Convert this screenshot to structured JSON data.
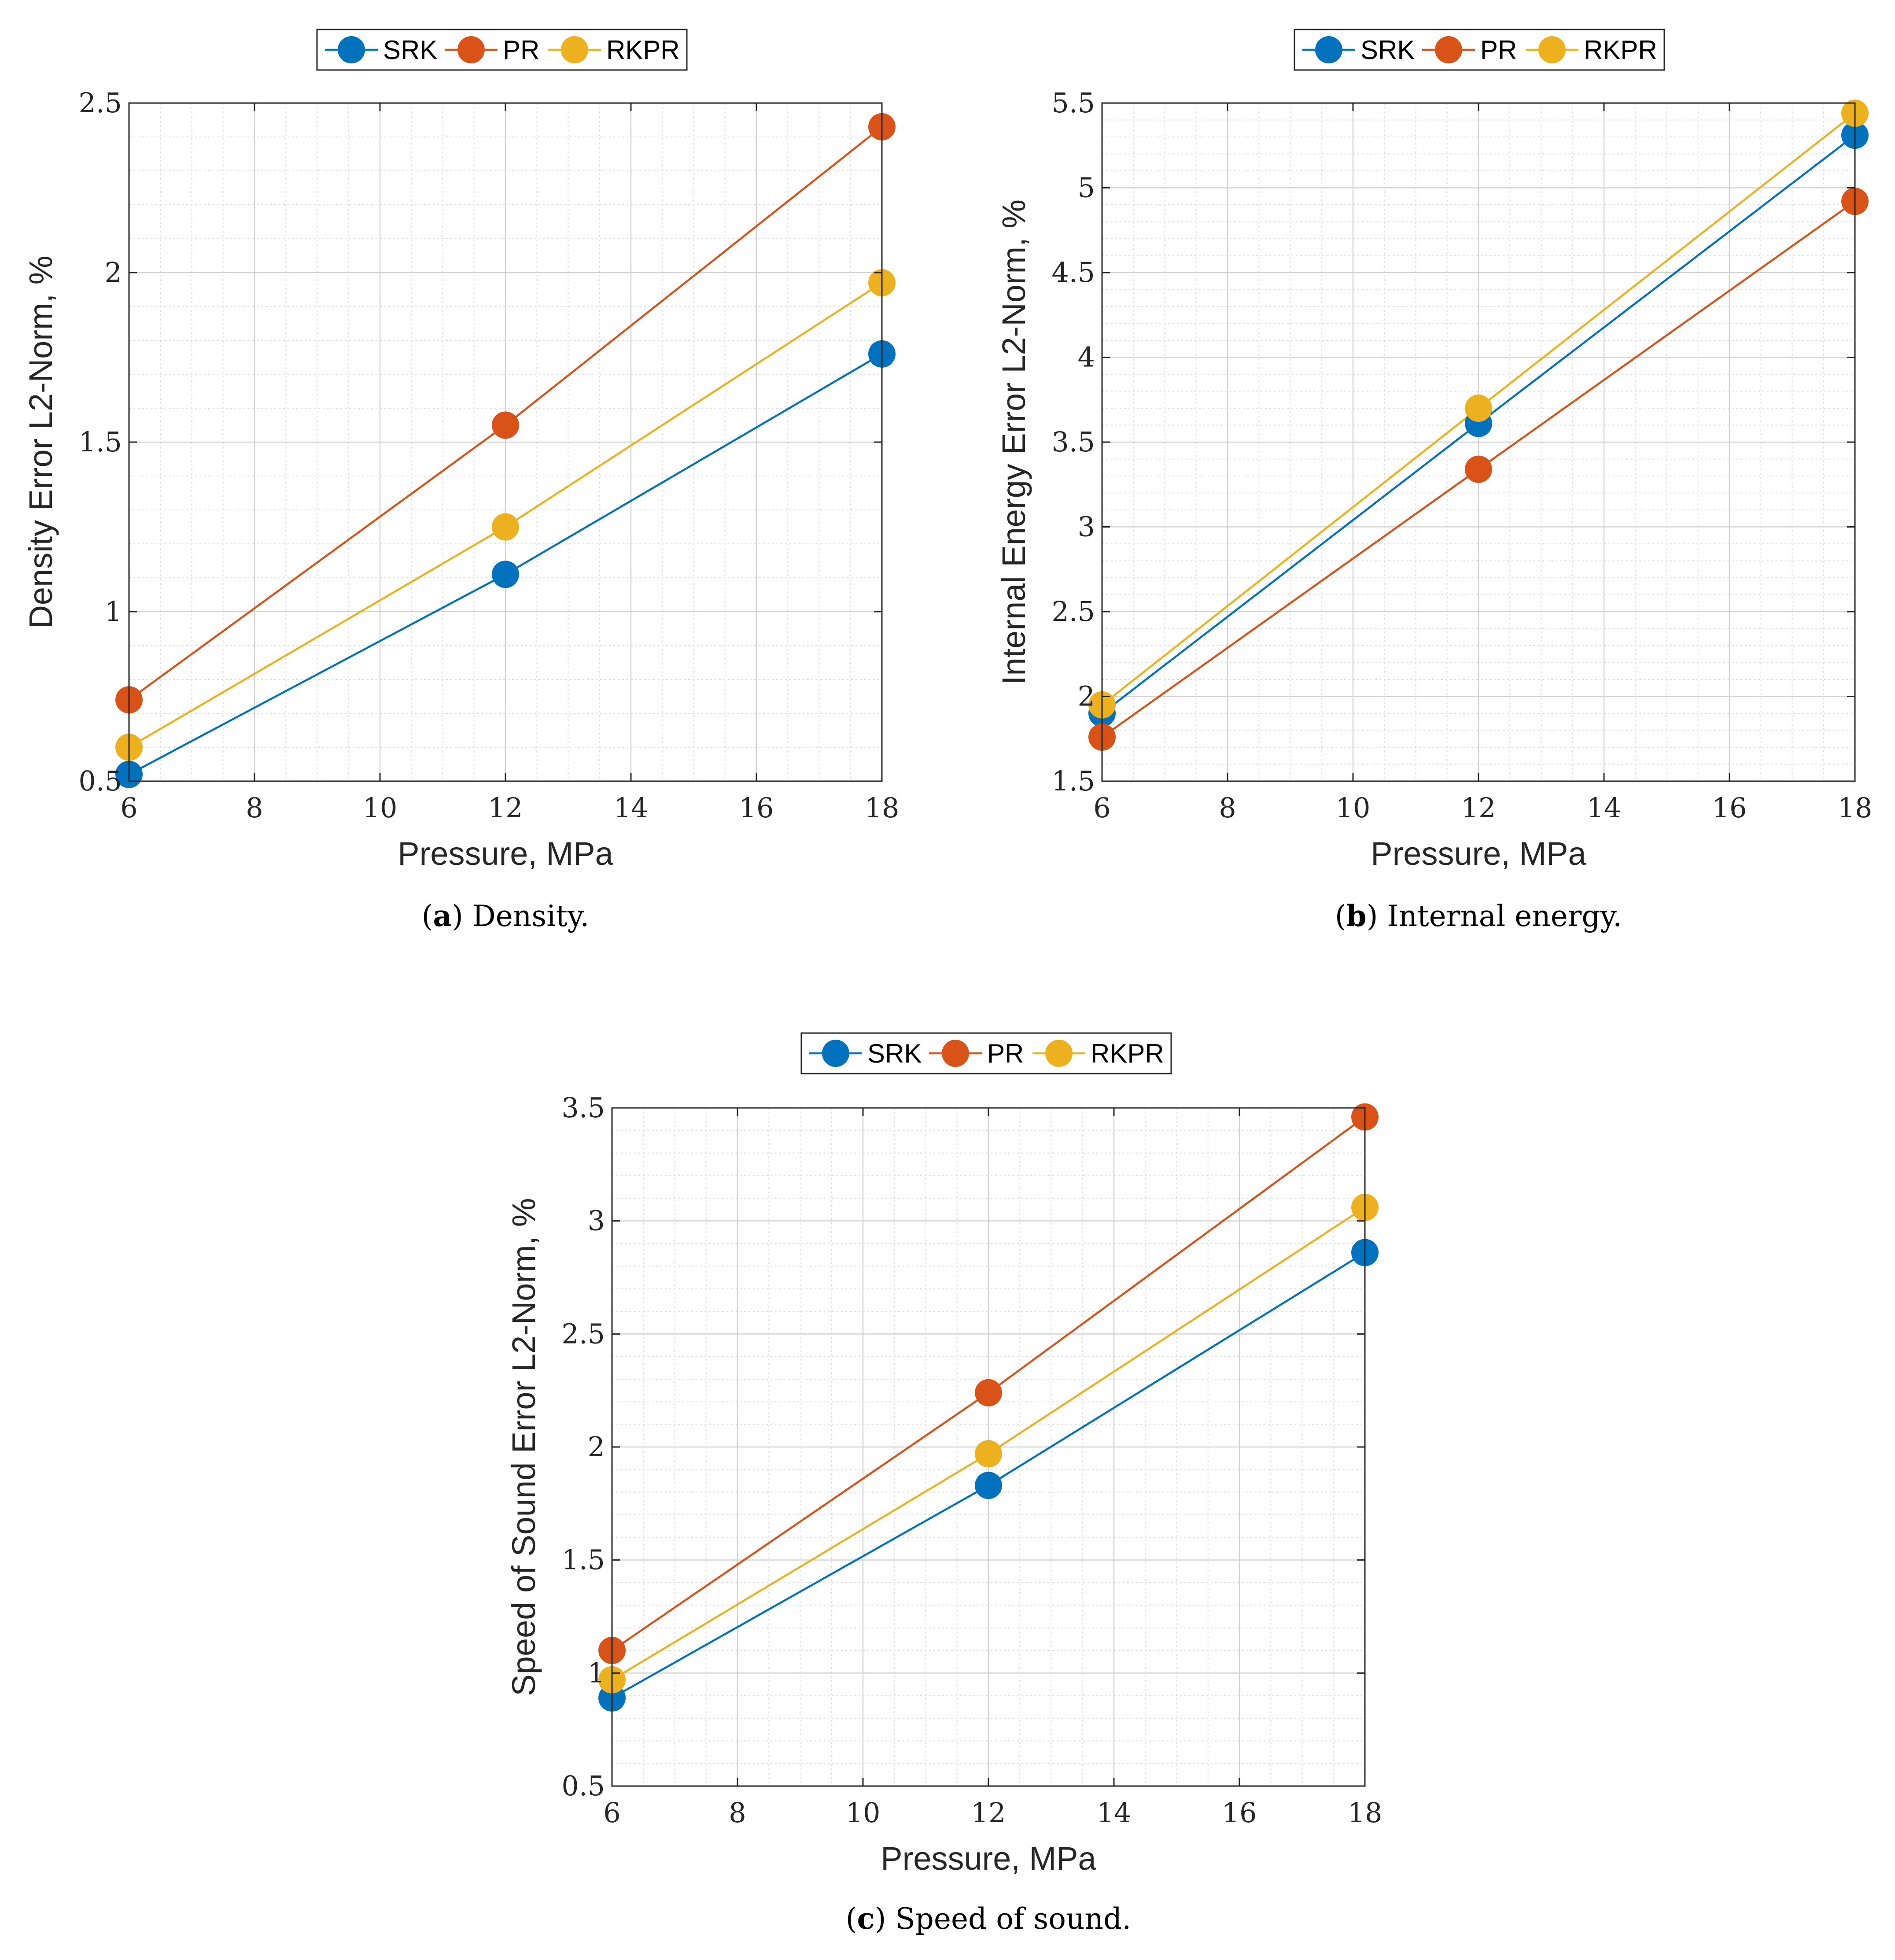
{
  "series_colors": {
    "SRK": "#0072BD",
    "PR": "#D95319",
    "RKPR": "#EDB120"
  },
  "chart_data": [
    {
      "type": "line",
      "caption_letter": "a",
      "caption_text": "Density.",
      "xlabel": "Pressure, MPa",
      "ylabel": "Density Error L2-Norm, %",
      "xlim": [
        6,
        18
      ],
      "ylim": [
        0.5,
        2.5
      ],
      "xticks": [
        6,
        8,
        10,
        12,
        14,
        16,
        18
      ],
      "yticks": [
        0.5,
        1,
        1.5,
        2,
        2.5
      ],
      "yticklabels": [
        "0.5",
        "1",
        "1.5",
        "2",
        "2.5"
      ],
      "grid": true,
      "legend": [
        "SRK",
        "PR",
        "RKPR"
      ],
      "legend_position": "top-outside",
      "x": [
        6,
        12,
        18
      ],
      "series": [
        {
          "name": "SRK",
          "values": [
            0.52,
            1.11,
            1.76
          ]
        },
        {
          "name": "PR",
          "values": [
            0.74,
            1.55,
            2.43
          ]
        },
        {
          "name": "RKPR",
          "values": [
            0.6,
            1.25,
            1.97
          ]
        }
      ]
    },
    {
      "type": "line",
      "caption_letter": "b",
      "caption_text": "Internal energy.",
      "xlabel": "Pressure, MPa",
      "ylabel": "Internal Energy Error L2-Norm, %",
      "xlim": [
        6,
        18
      ],
      "ylim": [
        1.5,
        5.5
      ],
      "xticks": [
        6,
        8,
        10,
        12,
        14,
        16,
        18
      ],
      "yticks": [
        1.5,
        2,
        2.5,
        3,
        3.5,
        4,
        4.5,
        5,
        5.5
      ],
      "yticklabels": [
        "1.5",
        "2",
        "2.5",
        "3",
        "3.5",
        "4",
        "4.5",
        "5",
        "5.5"
      ],
      "grid": true,
      "legend": [
        "SRK",
        "PR",
        "RKPR"
      ],
      "legend_position": "top-outside",
      "x": [
        6,
        12,
        18
      ],
      "series": [
        {
          "name": "SRK",
          "values": [
            1.9,
            3.61,
            5.31
          ]
        },
        {
          "name": "PR",
          "values": [
            1.76,
            3.34,
            4.92
          ]
        },
        {
          "name": "RKPR",
          "values": [
            1.95,
            3.7,
            5.44
          ]
        }
      ]
    },
    {
      "type": "line",
      "caption_letter": "c",
      "caption_text": "Speed of sound.",
      "xlabel": "Pressure, MPa",
      "ylabel": "Speed of Sound Error L2-Norm, %",
      "xlim": [
        6,
        18
      ],
      "ylim": [
        0.5,
        3.5
      ],
      "xticks": [
        6,
        8,
        10,
        12,
        14,
        16,
        18
      ],
      "yticks": [
        0.5,
        1,
        1.5,
        2,
        2.5,
        3,
        3.5
      ],
      "yticklabels": [
        "0.5",
        "1",
        "1.5",
        "2",
        "2.5",
        "3",
        "3.5"
      ],
      "grid": true,
      "legend": [
        "SRK",
        "PR",
        "RKPR"
      ],
      "legend_position": "top-outside",
      "x": [
        6,
        12,
        18
      ],
      "series": [
        {
          "name": "SRK",
          "values": [
            0.89,
            1.83,
            2.86
          ]
        },
        {
          "name": "PR",
          "values": [
            1.1,
            2.24,
            3.46
          ]
        },
        {
          "name": "RKPR",
          "values": [
            0.97,
            1.97,
            3.06
          ]
        }
      ]
    }
  ]
}
